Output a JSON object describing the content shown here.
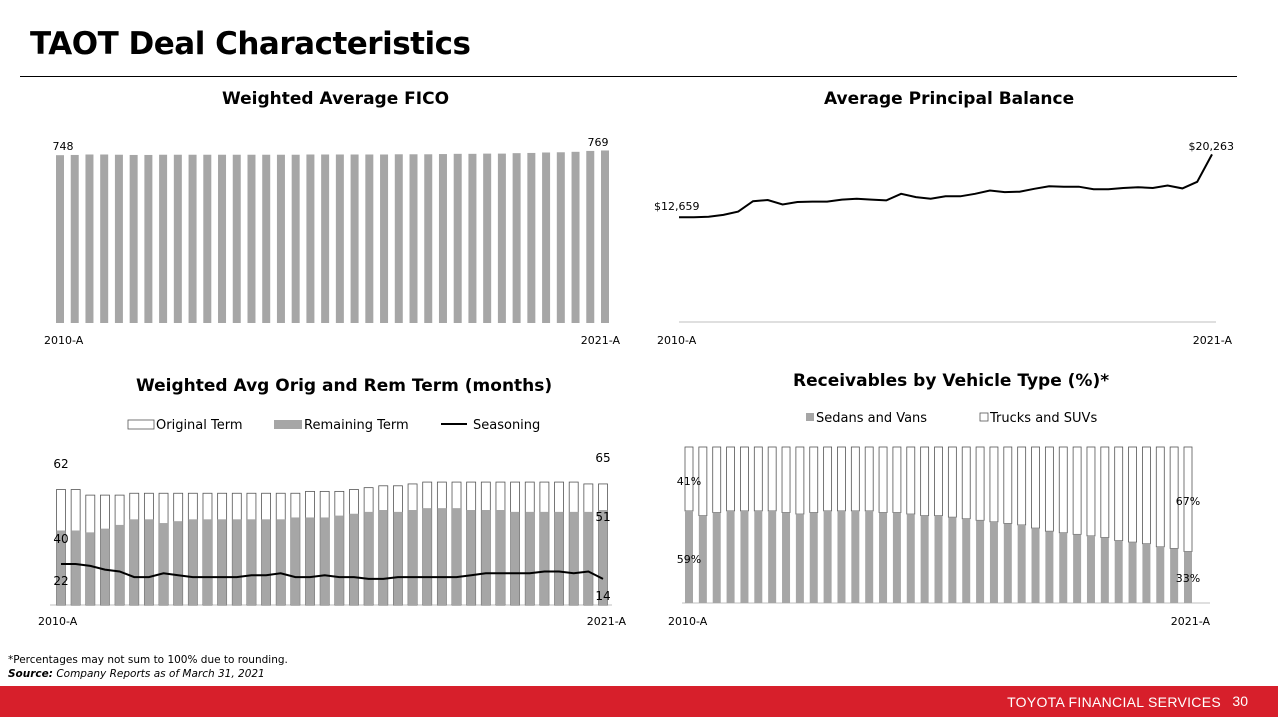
{
  "page": {
    "title": "TAOT Deal Characteristics",
    "footnote": "*Percentages may not sum to 100% due to rounding.",
    "source_label": "Source:",
    "source_text": " Company Reports as of March 31, 2021",
    "footer_brand": "TOYOTA FINANCIAL SERVICES",
    "page_number": "30",
    "colors": {
      "bar_gray": "#a6a6a6",
      "footer_red": "#d71f2b",
      "line": "#000000"
    }
  },
  "chart_data": [
    {
      "type": "bar",
      "title": "Weighted Average FICO",
      "x_start_label": "2010-A",
      "x_end_label": "2021-A",
      "first_label": "748",
      "last_label": "769",
      "ylim": [
        0,
        780
      ],
      "values": [
        748,
        749,
        751,
        751,
        750,
        749,
        749,
        750,
        750,
        750,
        750,
        750,
        750,
        750,
        750,
        750,
        750,
        751,
        751,
        751,
        751,
        751,
        751,
        752,
        752,
        752,
        753,
        754,
        754,
        755,
        755,
        757,
        758,
        760,
        761,
        763,
        767,
        769
      ]
    },
    {
      "type": "line",
      "title": "Average Principal Balance",
      "x_start_label": "2010-A",
      "x_end_label": "2021-A",
      "first_label": "$12,659",
      "last_label": "$20,263",
      "ylim": [
        0,
        22000
      ],
      "values": [
        12659,
        12660,
        12720,
        12950,
        13350,
        14600,
        14750,
        14200,
        14500,
        14550,
        14550,
        14800,
        14900,
        14800,
        14700,
        15500,
        15100,
        14900,
        15200,
        15200,
        15500,
        15900,
        15700,
        15750,
        16100,
        16400,
        16350,
        16350,
        16050,
        16050,
        16200,
        16300,
        16200,
        16500,
        16150,
        16950,
        20263
      ]
    },
    {
      "type": "bar",
      "title": "Weighted Avg Orig and Rem Term (months)",
      "x_start_label": "2010-A",
      "x_end_label": "2021-A",
      "ylim": [
        0,
        80
      ],
      "legend": [
        "Original Term",
        "Remaining Term",
        "Seasoning"
      ],
      "labels": {
        "orig_first": "62",
        "orig_last": "65",
        "rem_first": "40",
        "rem_last": "51",
        "seas_first": "22",
        "seas_last": "14"
      },
      "series": [
        {
          "name": "Original Term",
          "values": [
            62,
            62,
            59,
            59,
            59,
            60,
            60,
            60,
            60,
            60,
            60,
            60,
            60,
            60,
            60,
            60,
            60,
            61,
            61,
            61,
            62,
            63,
            64,
            64,
            65,
            66,
            66,
            66,
            66,
            66,
            66,
            66,
            66,
            66,
            66,
            66,
            65,
            65
          ]
        },
        {
          "name": "Remaining Term",
          "values": [
            40,
            40,
            39,
            41,
            43,
            46,
            46,
            44,
            45,
            46,
            46,
            46,
            46,
            46,
            46,
            46,
            47,
            47,
            47,
            48,
            49,
            50,
            51,
            50,
            51,
            52,
            52,
            52,
            51,
            51,
            51,
            50,
            50,
            50,
            50,
            50,
            50,
            51
          ]
        },
        {
          "name": "Seasoning",
          "values": [
            22,
            22,
            21,
            19,
            18,
            15,
            15,
            17,
            16,
            15,
            15,
            15,
            15,
            16,
            16,
            17,
            15,
            15,
            16,
            15,
            15,
            14,
            14,
            15,
            15,
            15,
            15,
            15,
            16,
            17,
            17,
            17,
            17,
            18,
            18,
            17,
            18,
            14
          ]
        }
      ]
    },
    {
      "type": "bar",
      "title": "Receivables by Vehicle Type (%)*",
      "x_start_label": "2010-A",
      "x_end_label": "2021-A",
      "ylim": [
        0,
        100
      ],
      "legend": [
        "Sedans and Vans",
        "Trucks and SUVs"
      ],
      "labels": {
        "sedan_first": "59%",
        "truck_first": "41%",
        "sedan_last": "33%",
        "truck_last": "67%"
      },
      "series": [
        {
          "name": "Sedans and Vans",
          "values": [
            59,
            56,
            58,
            59,
            59,
            59,
            59,
            58,
            57,
            58,
            59,
            59,
            59,
            59,
            58,
            58,
            57,
            56,
            56,
            55,
            54,
            53,
            52,
            51,
            50,
            48,
            46,
            45,
            44,
            43,
            42,
            40,
            39,
            38,
            36,
            35,
            33
          ]
        },
        {
          "name": "Trucks and SUVs",
          "values": [
            41,
            44,
            42,
            41,
            41,
            41,
            41,
            42,
            43,
            42,
            41,
            41,
            41,
            41,
            42,
            42,
            43,
            44,
            44,
            45,
            46,
            47,
            48,
            49,
            50,
            52,
            54,
            55,
            56,
            57,
            58,
            60,
            61,
            62,
            64,
            65,
            67
          ]
        }
      ]
    }
  ]
}
